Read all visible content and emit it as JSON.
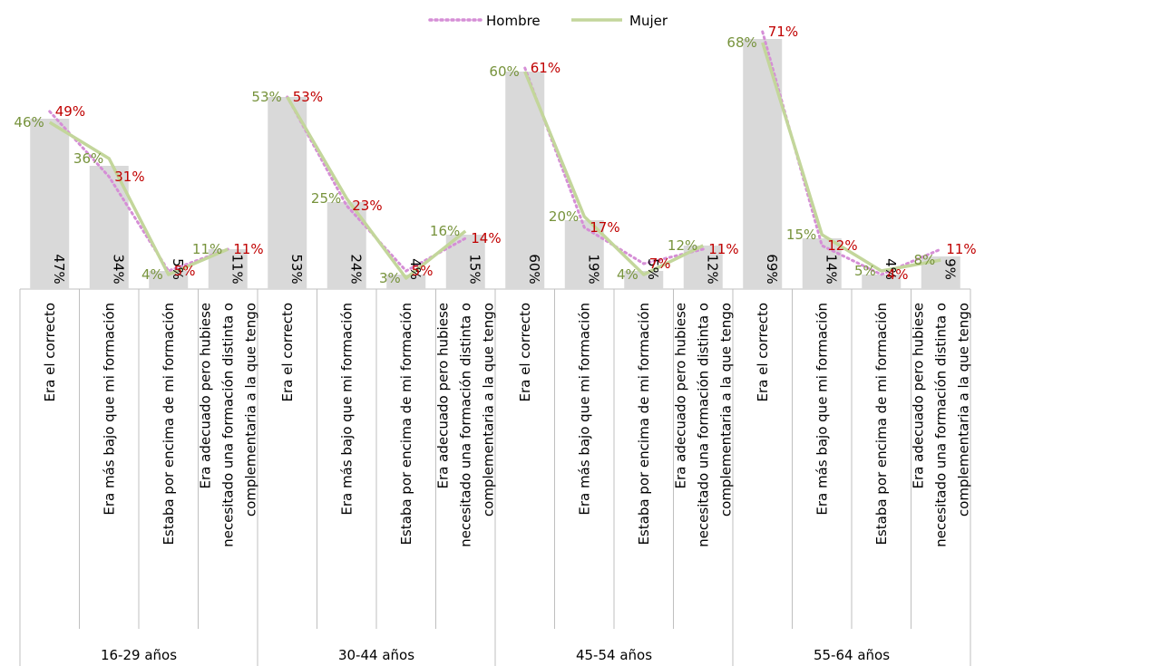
{
  "chart_data": {
    "type": "bar",
    "title": "",
    "xlabel": "",
    "ylabel": "",
    "ylim": [
      0,
      0.75
    ],
    "grid": false,
    "legend": {
      "position": "top-center",
      "entries": [
        "Hombre",
        "Mujer"
      ]
    },
    "colors": {
      "bars": "#d9d9d9",
      "hombre": "#d58ed6",
      "mujer": "#c3d69b",
      "hombre_text": "#c00000",
      "mujer_text": "#77933c",
      "axis": "#bfbfbf"
    },
    "groups": [
      "16-29 años",
      "30-44 años",
      "45-54 años",
      "55-64 años"
    ],
    "categories": [
      "Era el correcto",
      "Era más bajo que mi formación",
      "Estaba por encima de mi formación",
      "Era adecuado pero hubiese necesitado una formación distinta o complementaria a la que tengo"
    ],
    "category_lines": [
      [
        "Era el correcto"
      ],
      [
        "Era más bajo que mi formación"
      ],
      [
        "Estaba por encima de mi formación"
      ],
      [
        "Era adecuado pero hubiese",
        "necesitado una formación distinta o",
        "complementaria a la que tengo"
      ]
    ],
    "series": [
      {
        "name": "Total",
        "kind": "bar",
        "values": [
          [
            0.47,
            0.34,
            0.05,
            0.11
          ],
          [
            0.53,
            0.24,
            0.04,
            0.15
          ],
          [
            0.6,
            0.19,
            0.05,
            0.12
          ],
          [
            0.69,
            0.14,
            0.04,
            0.09
          ]
        ],
        "labels": [
          [
            "47%",
            "34%",
            "5%",
            "11%"
          ],
          [
            "53%",
            "24%",
            "4%",
            "15%"
          ],
          [
            "60%",
            "19%",
            "5%",
            "12%"
          ],
          [
            "69%",
            "14%",
            "4%",
            "9%"
          ]
        ]
      },
      {
        "name": "Hombre",
        "kind": "line",
        "values": [
          [
            0.49,
            0.31,
            0.05,
            0.11
          ],
          [
            0.53,
            0.23,
            0.05,
            0.14
          ],
          [
            0.61,
            0.17,
            0.07,
            0.11
          ],
          [
            0.71,
            0.12,
            0.04,
            0.11
          ]
        ],
        "labels": [
          [
            "49%",
            "31%",
            "5%",
            "11%"
          ],
          [
            "53%",
            "23%",
            "5%",
            "14%"
          ],
          [
            "61%",
            "17%",
            "7%",
            "11%"
          ],
          [
            "71%",
            "12%",
            "4%",
            "11%"
          ]
        ]
      },
      {
        "name": "Mujer",
        "kind": "line",
        "values": [
          [
            0.46,
            0.36,
            0.04,
            0.11
          ],
          [
            0.53,
            0.25,
            0.03,
            0.16
          ],
          [
            0.6,
            0.2,
            0.04,
            0.12
          ],
          [
            0.68,
            0.15,
            0.05,
            0.08
          ]
        ],
        "labels": [
          [
            "46%",
            "36%",
            "4%",
            "11%"
          ],
          [
            "53%",
            "25%",
            "3%",
            "16%"
          ],
          [
            "60%",
            "20%",
            "4%",
            "12%"
          ],
          [
            "68%",
            "15%",
            "5%",
            "8%"
          ]
        ]
      }
    ]
  }
}
